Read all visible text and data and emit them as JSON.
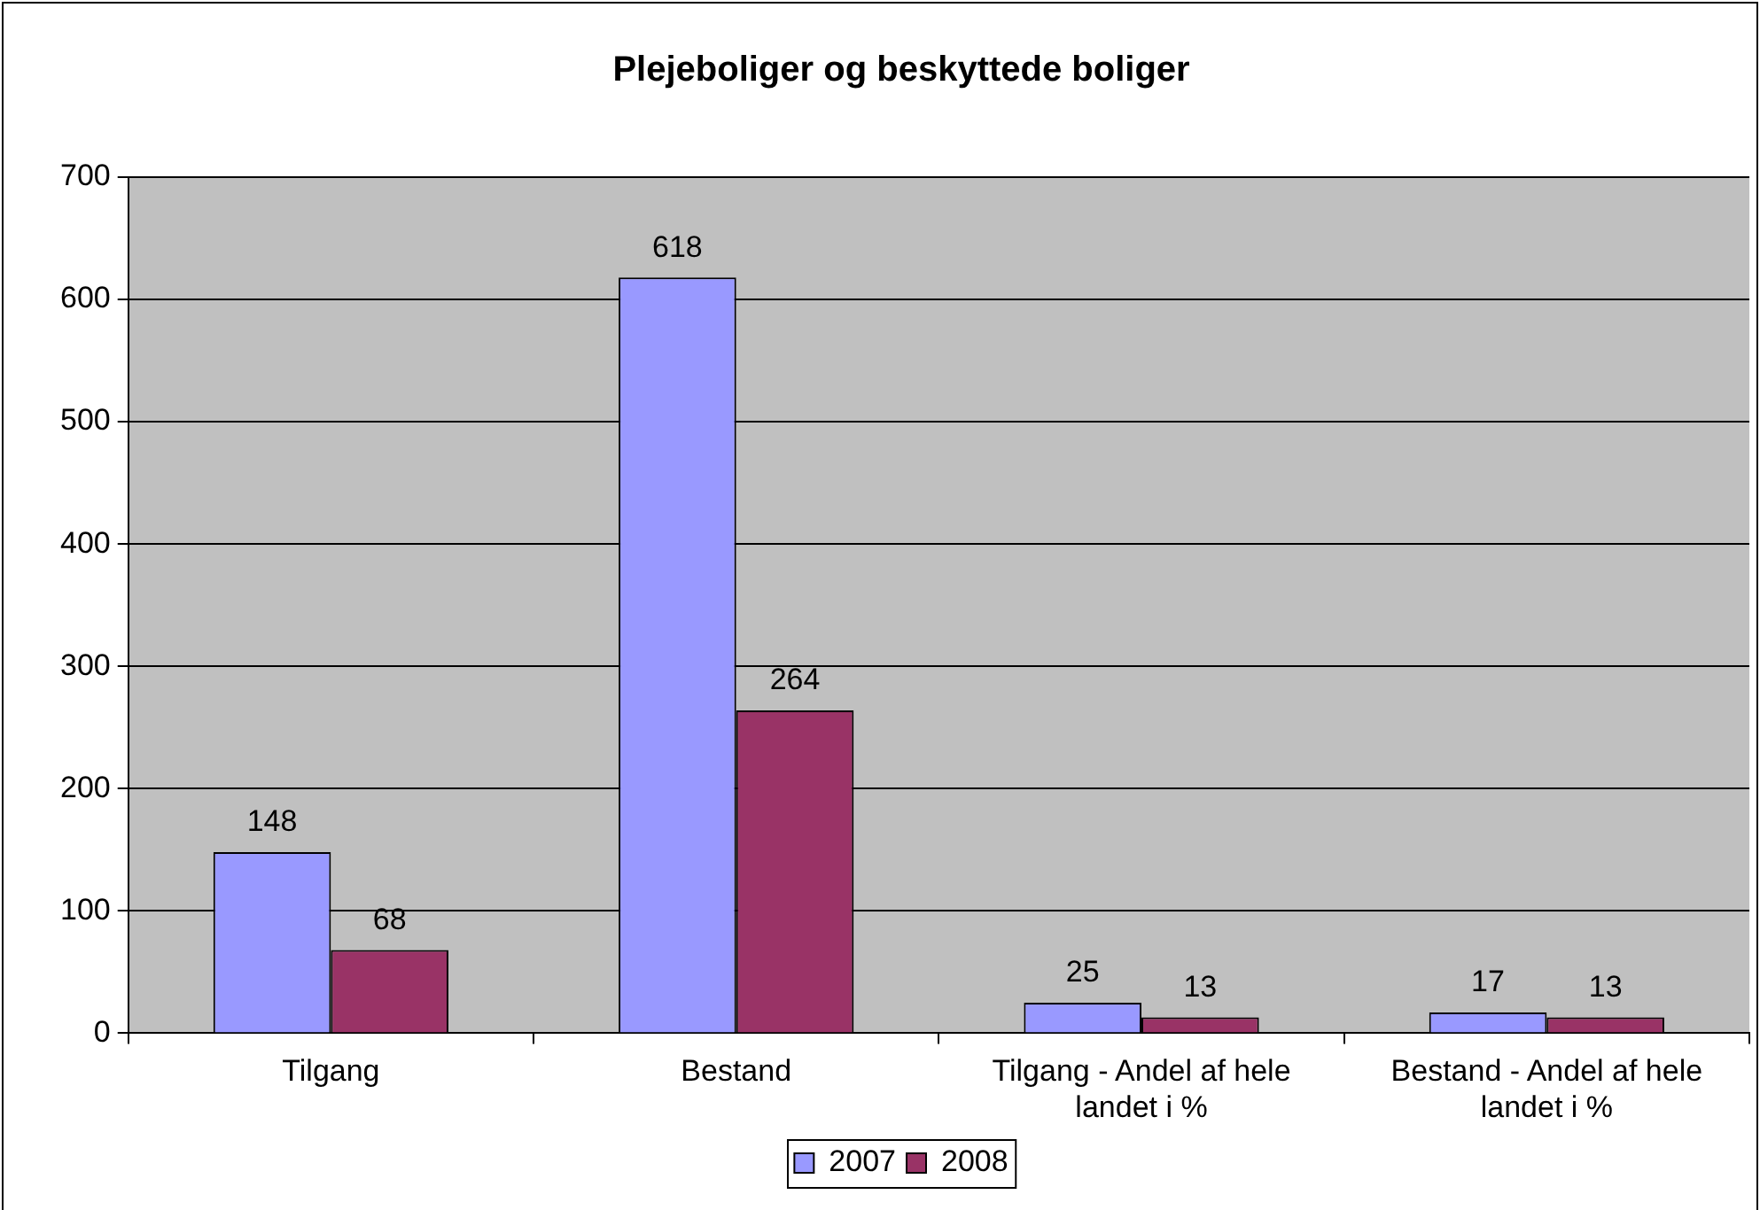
{
  "chart_data": {
    "type": "bar",
    "title": "Plejeboliger og beskyttede boliger",
    "categories": [
      "Tilgang",
      "Bestand",
      "Tilgang - Andel af hele landet i %",
      "Bestand - Andel af hele landet i %"
    ],
    "series": [
      {
        "name": "2007",
        "color": "#9999ff",
        "values": [
          148,
          618,
          25,
          17
        ]
      },
      {
        "name": "2008",
        "color": "#993366",
        "values": [
          68,
          264,
          13,
          13
        ]
      }
    ],
    "ylim": [
      0,
      700
    ],
    "yticks": [
      0,
      100,
      200,
      300,
      400,
      500,
      600,
      700
    ],
    "grid": "y",
    "legend": "bottom",
    "data_labels": true
  }
}
